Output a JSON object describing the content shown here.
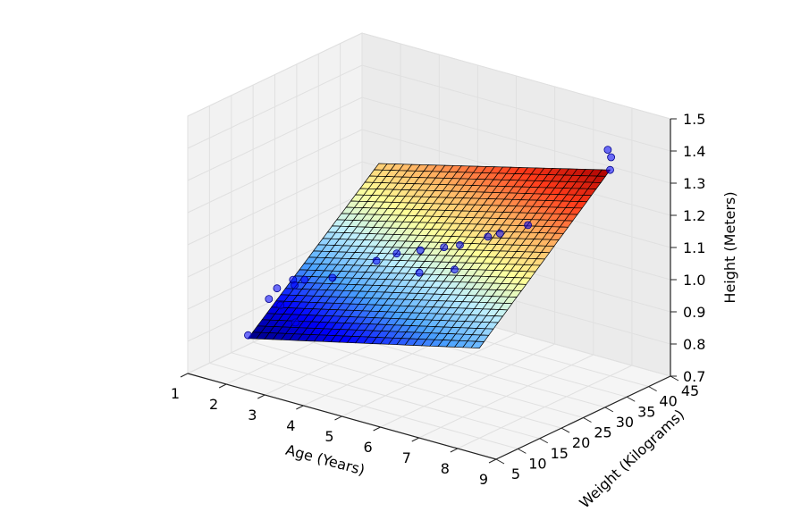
{
  "chart_data": {
    "type": "surface3d",
    "title": "",
    "xlabel": "Age (Years)",
    "ylabel": "Weight (Kilograms)",
    "zlabel": "Height (Meters)",
    "xlim": [
      1,
      9
    ],
    "ylim": [
      5,
      45
    ],
    "zlim": [
      0.7,
      1.5
    ],
    "xticks": [
      "1",
      "2",
      "3",
      "4",
      "5",
      "6",
      "7",
      "8",
      "9"
    ],
    "yticks": [
      "5",
      "10",
      "15",
      "20",
      "25",
      "30",
      "35",
      "40",
      "45"
    ],
    "zticks": [
      "0.7",
      "0.8",
      "0.9",
      "1.0",
      "1.1",
      "1.2",
      "1.3",
      "1.4",
      "1.5"
    ],
    "grid": true,
    "colormap": [
      "#00007f",
      "#0000ff",
      "#4ba3ff",
      "#bff0ff",
      "#ffff99",
      "#ffb060",
      "#ff3a1a",
      "#a80000"
    ],
    "plane": {
      "x_range": [
        2,
        8
      ],
      "y_range": [
        10,
        40
      ],
      "grid_lines": 28,
      "corner_z": {
        "x2_y10": 0.81,
        "x8_y10": 0.98,
        "x2_y40": 1.16,
        "x8_y40": 1.34
      }
    },
    "scatter": {
      "color": "#0000ff",
      "points": [
        {
          "x": 2.0,
          "y": 10.0,
          "z": 0.82
        },
        {
          "x": 2.2,
          "y": 13.0,
          "z": 0.92
        },
        {
          "x": 2.3,
          "y": 14.0,
          "z": 0.95
        },
        {
          "x": 2.5,
          "y": 13.0,
          "z": 0.91
        },
        {
          "x": 2.6,
          "y": 15.0,
          "z": 0.98
        },
        {
          "x": 2.7,
          "y": 14.5,
          "z": 0.97
        },
        {
          "x": 2.9,
          "y": 15.0,
          "z": 0.99
        },
        {
          "x": 3.0,
          "y": 12.0,
          "z": 0.88
        },
        {
          "x": 3.4,
          "y": 17.0,
          "z": 1.0
        },
        {
          "x": 4.2,
          "y": 20.0,
          "z": 1.06
        },
        {
          "x": 4.5,
          "y": 22.0,
          "z": 1.08
        },
        {
          "x": 5.0,
          "y": 23.0,
          "z": 1.1
        },
        {
          "x": 5.2,
          "y": 21.0,
          "z": 1.05
        },
        {
          "x": 5.5,
          "y": 24.0,
          "z": 1.12
        },
        {
          "x": 5.8,
          "y": 25.0,
          "z": 1.13
        },
        {
          "x": 6.0,
          "y": 22.0,
          "z": 1.08
        },
        {
          "x": 6.3,
          "y": 27.0,
          "z": 1.16
        },
        {
          "x": 6.5,
          "y": 28.0,
          "z": 1.17
        },
        {
          "x": 6.7,
          "y": 26.0,
          "z": 1.12
        },
        {
          "x": 7.0,
          "y": 30.0,
          "z": 1.2
        },
        {
          "x": 7.2,
          "y": 29.0,
          "z": 1.18
        },
        {
          "x": 7.5,
          "y": 33.0,
          "z": 1.24
        },
        {
          "x": 8.0,
          "y": 40.0,
          "z": 1.34
        },
        {
          "x": 7.8,
          "y": 42.0,
          "z": 1.36
        },
        {
          "x": 7.6,
          "y": 43.0,
          "z": 1.37
        }
      ]
    }
  }
}
